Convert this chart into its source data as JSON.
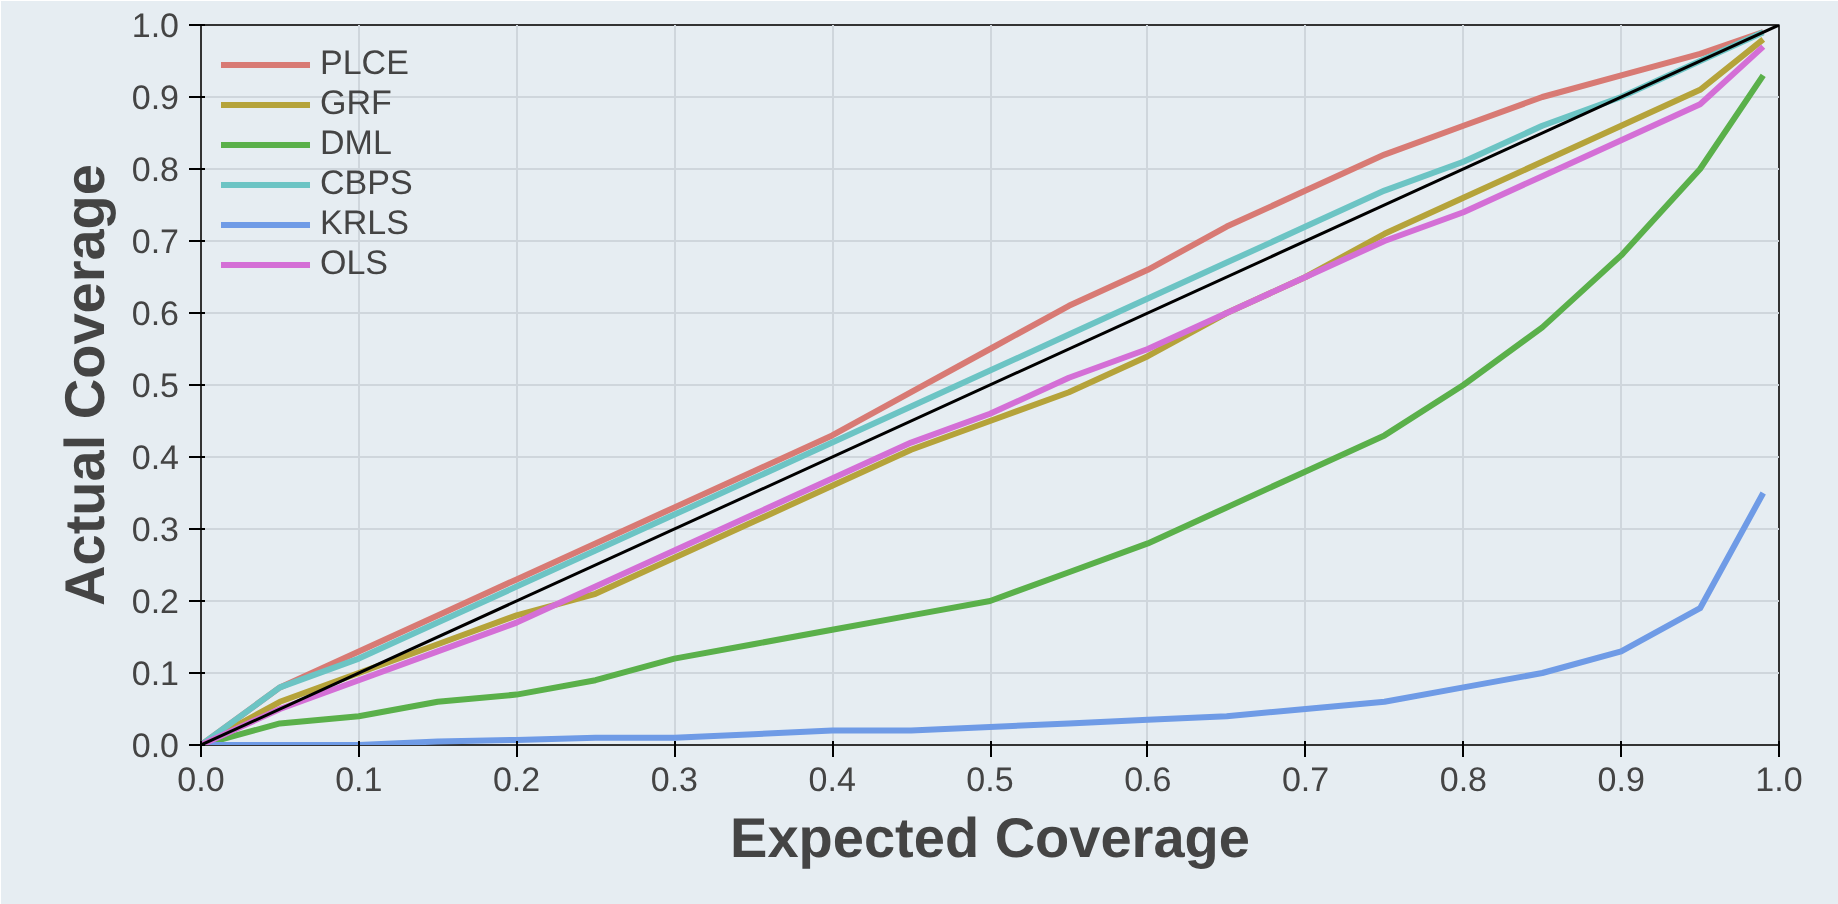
{
  "chart_data": {
    "type": "line",
    "xlabel": "Expected Coverage",
    "ylabel": "Actual Coverage",
    "x": [
      0,
      0.05,
      0.1,
      0.15,
      0.2,
      0.25,
      0.3,
      0.35,
      0.4,
      0.45,
      0.5,
      0.55,
      0.6,
      0.65,
      0.7,
      0.75,
      0.8,
      0.85,
      0.9,
      0.95,
      0.99
    ],
    "series": [
      {
        "name": "PLCE",
        "color": "#d87a74",
        "values": [
          0,
          0.08,
          0.13,
          0.18,
          0.23,
          0.28,
          0.33,
          0.38,
          0.43,
          0.49,
          0.55,
          0.61,
          0.66,
          0.72,
          0.77,
          0.82,
          0.86,
          0.9,
          0.93,
          0.96,
          0.99
        ]
      },
      {
        "name": "GRF",
        "color": "#b5a33a",
        "values": [
          0,
          0.06,
          0.1,
          0.14,
          0.18,
          0.21,
          0.26,
          0.31,
          0.36,
          0.41,
          0.45,
          0.49,
          0.54,
          0.6,
          0.65,
          0.71,
          0.76,
          0.81,
          0.86,
          0.91,
          0.98
        ]
      },
      {
        "name": "DML",
        "color": "#5ab04a",
        "values": [
          0,
          0.03,
          0.04,
          0.06,
          0.07,
          0.09,
          0.12,
          0.14,
          0.16,
          0.18,
          0.2,
          0.24,
          0.28,
          0.33,
          0.38,
          0.43,
          0.5,
          0.58,
          0.68,
          0.8,
          0.93
        ]
      },
      {
        "name": "CBPS",
        "color": "#6cc4c4",
        "values": [
          0,
          0.08,
          0.12,
          0.17,
          0.22,
          0.27,
          0.32,
          0.37,
          0.42,
          0.47,
          0.52,
          0.57,
          0.62,
          0.67,
          0.72,
          0.77,
          0.81,
          0.86,
          0.9,
          0.95,
          0.99
        ]
      },
      {
        "name": "KRLS",
        "color": "#6f9be6",
        "values": [
          0,
          0,
          0,
          0.005,
          0.007,
          0.01,
          0.01,
          0.015,
          0.02,
          0.02,
          0.025,
          0.03,
          0.035,
          0.04,
          0.05,
          0.06,
          0.08,
          0.1,
          0.13,
          0.19,
          0.35
        ]
      },
      {
        "name": "OLS",
        "color": "#d46fd6",
        "values": [
          0,
          0.05,
          0.09,
          0.13,
          0.17,
          0.22,
          0.27,
          0.32,
          0.37,
          0.42,
          0.46,
          0.51,
          0.55,
          0.6,
          0.65,
          0.7,
          0.74,
          0.79,
          0.84,
          0.89,
          0.97
        ]
      },
      {
        "color": "#000000",
        "x": [
          0,
          1
        ],
        "values": [
          0,
          1
        ]
      }
    ],
    "xlim": [
      0,
      1
    ],
    "ylim": [
      0,
      1
    ],
    "xticks": [
      {
        "value": 0,
        "label": "0.0"
      },
      0.1,
      0.2,
      0.3,
      0.4,
      0.5,
      0.6,
      0.7,
      0.8,
      0.9,
      {
        "value": 1,
        "label": "1.0"
      }
    ],
    "yticks": [
      {
        "value": 0,
        "label": "0.0"
      },
      0.1,
      0.2,
      0.3,
      0.4,
      0.5,
      0.6,
      0.7,
      0.8,
      0.9,
      {
        "value": 1,
        "label": "1.0"
      }
    ],
    "grid": true,
    "legend": "top left"
  }
}
